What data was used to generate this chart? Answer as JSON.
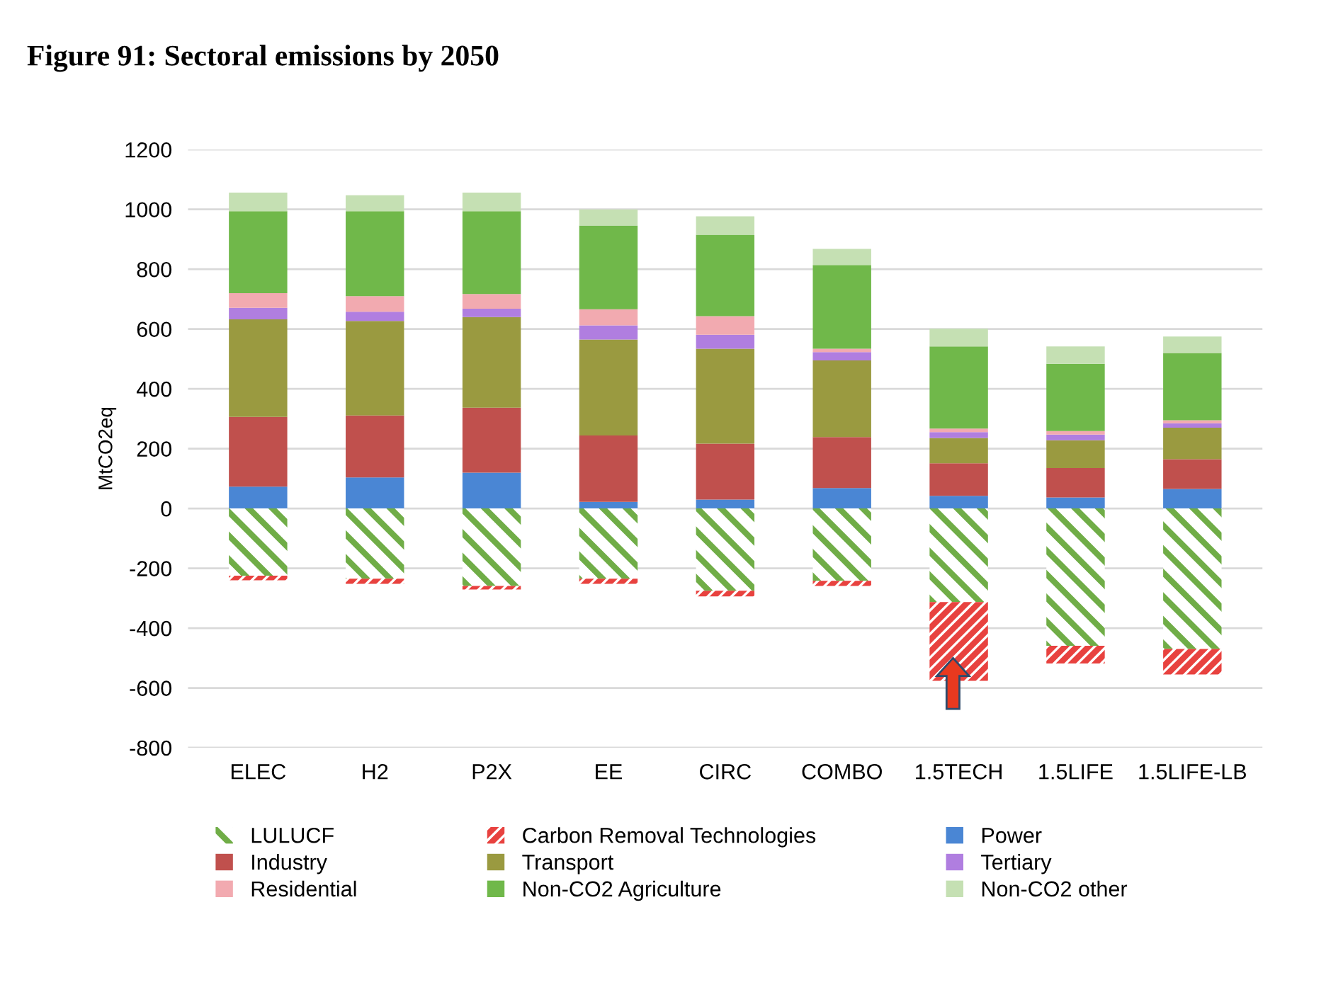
{
  "chart_data": {
    "type": "bar",
    "stacked": true,
    "title": "Figure 91: Sectoral emissions by 2050",
    "ylabel": "MtCO2eq",
    "categories": [
      "ELEC",
      "H2",
      "P2X",
      "EE",
      "CIRC",
      "COMBO",
      "1.5TECH",
      "1.5LIFE",
      "1.5LIFE-LB"
    ],
    "series": [
      {
        "name": "LULUCF",
        "color": "#70ad47",
        "values": [
          -225,
          -235,
          -259,
          -235,
          -275,
          -242,
          -313,
          -459,
          -470
        ]
      },
      {
        "name": "Carbon Removal Technologies",
        "color": "#e8423f",
        "values": [
          -15,
          -17,
          -12,
          -17,
          -19,
          -17,
          -263,
          -59,
          -85
        ]
      },
      {
        "name": "Power",
        "color": "#4a86d4",
        "values": [
          73,
          104,
          120,
          22,
          30,
          68,
          42,
          37,
          65
        ]
      },
      {
        "name": "Industry",
        "color": "#c0504d",
        "values": [
          233,
          207,
          217,
          222,
          187,
          171,
          109,
          98,
          100
        ]
      },
      {
        "name": "Transport",
        "color": "#9a9a40",
        "values": [
          326,
          316,
          303,
          321,
          317,
          256,
          85,
          93,
          105
        ]
      },
      {
        "name": "Tertiary",
        "color": "#b07ee0",
        "values": [
          39,
          31,
          28,
          47,
          47,
          28,
          19,
          19,
          15
        ]
      },
      {
        "name": "Residential",
        "color": "#f2aab0",
        "values": [
          49,
          52,
          49,
          54,
          62,
          11,
          12,
          12,
          10
        ]
      },
      {
        "name": "Non-CO2 Agriculture",
        "color": "#70b84a",
        "values": [
          274,
          284,
          277,
          280,
          272,
          280,
          275,
          225,
          225
        ]
      },
      {
        "name": "Non-CO2 other",
        "color": "#c5e0b3",
        "values": [
          62,
          53,
          62,
          54,
          62,
          54,
          59,
          58,
          55
        ]
      }
    ],
    "ylim": [
      -800,
      1200
    ],
    "yticks": [
      -800,
      -600,
      -400,
      -200,
      0,
      200,
      400,
      600,
      800,
      1000,
      1200
    ],
    "grid": "y",
    "legend": "bottom"
  }
}
